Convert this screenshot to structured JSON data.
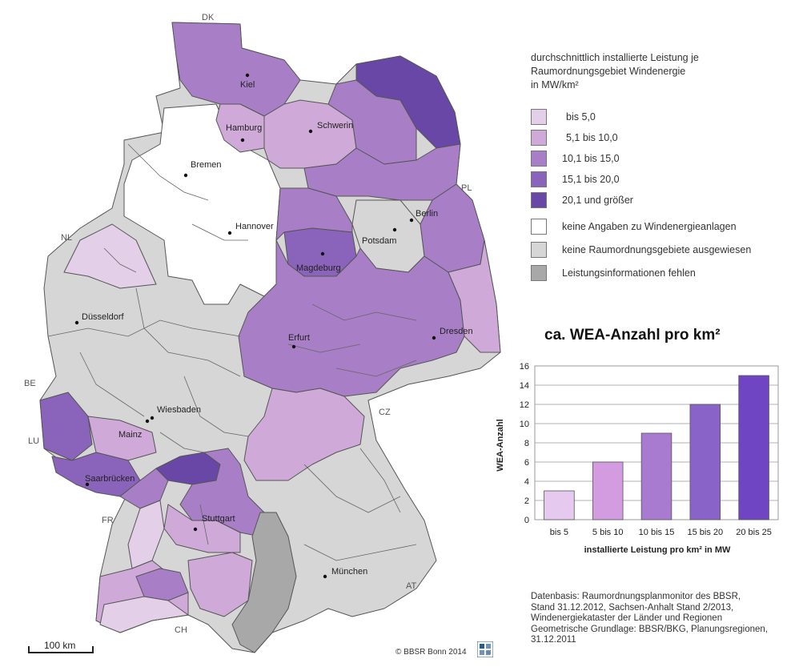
{
  "legend": {
    "title_lines": [
      "durchschnittlich installierte Leistung je",
      "Raumordnungsgebiet Windenergie",
      "in MW/km²"
    ],
    "items": [
      {
        "label": "bis   5,0",
        "color": "#e3cfe8"
      },
      {
        "label": "5,1 bis 10,0",
        "color": "#cfaad9"
      },
      {
        "label": "10,1 bis 15,0",
        "color": "#a87fc6"
      },
      {
        "label": "15,1 bis 20,0",
        "color": "#8a63bb"
      },
      {
        "label": "20,1 und größer",
        "color": "#6847a6"
      },
      {
        "label": "keine Angaben zu Windenergieanlagen",
        "color": "#ffffff"
      },
      {
        "label": "keine Raumordnungsgebiete ausgewiesen",
        "color": "#d6d6d6"
      },
      {
        "label": "Leistungsinformationen fehlen",
        "color": "#a8a8a8"
      }
    ]
  },
  "map": {
    "cities": [
      "Kiel",
      "Hamburg",
      "Schwerin",
      "Bremen",
      "Berlin",
      "Hannover",
      "Potsdam",
      "Magdeburg",
      "Düsseldorf",
      "Dresden",
      "Erfurt",
      "Wiesbaden",
      "Mainz",
      "Saarbrücken",
      "Stuttgart",
      "München"
    ],
    "countries": [
      "DK",
      "PL",
      "NL",
      "BE",
      "LU",
      "CZ",
      "FR",
      "AT",
      "CH"
    ],
    "scale_label": "100 km"
  },
  "chart_data": {
    "type": "bar",
    "title": "ca. WEA-Anzahl pro km²",
    "categories": [
      "bis 5",
      "5 bis 10",
      "10 bis 15",
      "15 bis 20",
      "20 bis 25"
    ],
    "values": [
      3,
      6,
      9,
      12,
      15
    ],
    "colors": [
      "#e6c9ee",
      "#d39be0",
      "#a97bd0",
      "#8a63c9",
      "#6f45c3"
    ],
    "xlabel": "installierte Leistung  pro km² in MW",
    "ylabel": "WEA-Anzahl",
    "ylim": [
      0,
      16
    ],
    "yticks": [
      0,
      2,
      4,
      6,
      8,
      10,
      12,
      14,
      16
    ],
    "grid": true,
    "legend": false
  },
  "footer": {
    "lines": [
      "Datenbasis: Raumordnungsplanmonitor des BBSR,",
      "Stand 31.12.2012, Sachsen-Anhalt Stand 2/2013,",
      "Windenergiekataster der Länder und Regionen",
      "Geometrische Grundlage: BBSR/BKG, Planungsregionen,",
      "31.12.2011"
    ],
    "copyright": "© BBSR Bonn 2014"
  }
}
